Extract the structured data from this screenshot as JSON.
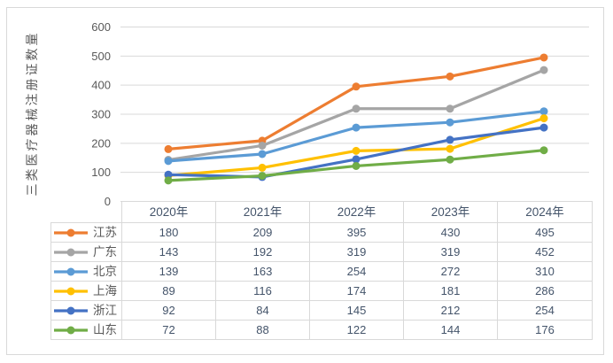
{
  "frame": {
    "background_color": "#FFFFFF",
    "border_color": "#D9D9D9"
  },
  "chart_data": {
    "type": "line",
    "title": "",
    "xlabel": "",
    "ylabel": "三类医疗器械注册证数量",
    "categories": [
      "2020年",
      "2021年",
      "2022年",
      "2023年",
      "2024年"
    ],
    "series": [
      {
        "name": "江苏",
        "color": "#ED7D31",
        "values": [
          180,
          209,
          395,
          430,
          495
        ]
      },
      {
        "name": "广东",
        "color": "#A5A5A5",
        "values": [
          143,
          192,
          319,
          319,
          452
        ]
      },
      {
        "name": "北京",
        "color": "#5B9BD5",
        "values": [
          139,
          163,
          254,
          272,
          310
        ]
      },
      {
        "name": "上海",
        "color": "#FFC000",
        "values": [
          89,
          116,
          174,
          181,
          286
        ]
      },
      {
        "name": "浙江",
        "color": "#4472C4",
        "values": [
          92,
          84,
          145,
          212,
          254
        ]
      },
      {
        "name": "山东",
        "color": "#70AD47",
        "values": [
          72,
          88,
          122,
          144,
          176
        ]
      }
    ],
    "ylim": [
      0,
      600
    ],
    "yticks": [
      0,
      100,
      200,
      300,
      400,
      500,
      600
    ],
    "grid": true,
    "marker": "circle",
    "legend_position": "data-table-left",
    "axis_text_color": "#595959",
    "gridline_color": "#D9D9D9",
    "table_text_color": "#44546A",
    "table_border_color": "#D9D9D9",
    "legend_text_color": "#595959"
  }
}
